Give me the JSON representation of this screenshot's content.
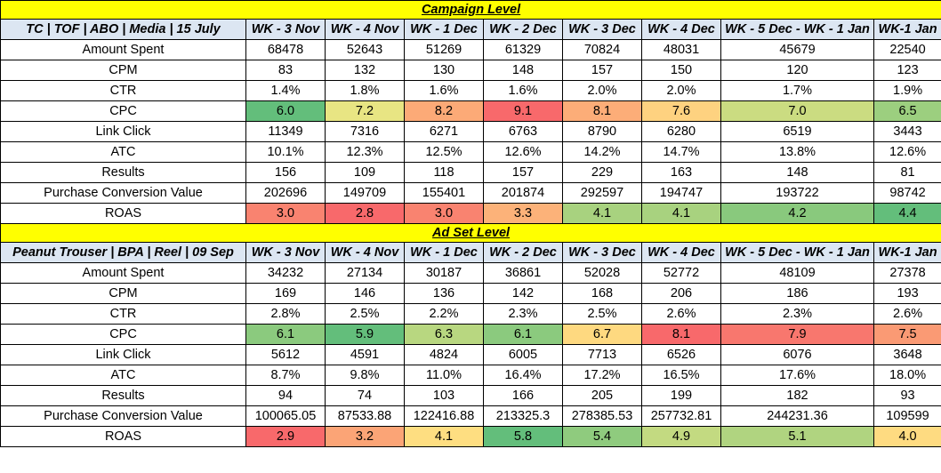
{
  "tables": [
    {
      "section_title": "Campaign Level",
      "name": "TC | TOF | ABO | Media | 15 July",
      "columns": [
        "WK - 3 Nov",
        "WK - 4 Nov",
        "WK - 1 Dec",
        "WK - 2 Dec",
        "WK - 3 Dec",
        "WK - 4 Dec",
        "WK - 5 Dec - WK - 1 Jan",
        "WK-1 Jan"
      ],
      "rows": [
        {
          "metric": "Amount Spent",
          "values": [
            "68478",
            "52643",
            "51269",
            "61329",
            "70824",
            "48031",
            "45679",
            "22540"
          ]
        },
        {
          "metric": "CPM",
          "values": [
            "83",
            "132",
            "130",
            "148",
            "157",
            "150",
            "120",
            "123"
          ]
        },
        {
          "metric": "CTR",
          "values": [
            "1.4%",
            "1.8%",
            "1.6%",
            "1.6%",
            "2.0%",
            "2.0%",
            "1.7%",
            "1.9%"
          ]
        },
        {
          "metric": "CPC",
          "values": [
            "6.0",
            "7.2",
            "8.2",
            "9.1",
            "8.1",
            "7.6",
            "7.0",
            "6.5"
          ],
          "colors": [
            "#63be7b",
            "#e8e583",
            "#fcaa77",
            "#f8696b",
            "#fcad78",
            "#fed280",
            "#cbdc81",
            "#9ccf7f"
          ]
        },
        {
          "metric": "Link Click",
          "values": [
            "11349",
            "7316",
            "6271",
            "6763",
            "8790",
            "6280",
            "6519",
            "3443"
          ]
        },
        {
          "metric": "ATC",
          "values": [
            "10.1%",
            "12.3%",
            "12.5%",
            "12.6%",
            "14.2%",
            "14.7%",
            "13.8%",
            "12.6%"
          ]
        },
        {
          "metric": "Results",
          "values": [
            "156",
            "109",
            "118",
            "157",
            "229",
            "163",
            "148",
            "81"
          ]
        },
        {
          "metric": "Purchase Conversion Value",
          "values": [
            "202696",
            "149709",
            "155401",
            "201874",
            "292597",
            "194747",
            "193722",
            "98742"
          ]
        },
        {
          "metric": "ROAS",
          "values": [
            "3.0",
            "2.8",
            "3.0",
            "3.3",
            "4.1",
            "4.1",
            "4.2",
            "4.4"
          ],
          "colors": [
            "#f98370",
            "#f8696b",
            "#f98370",
            "#fcb279",
            "#a8d27f",
            "#a8d27f",
            "#89c97d",
            "#63be7b"
          ]
        }
      ]
    },
    {
      "section_title": "Ad Set Level",
      "name": "Peanut Trouser | BPA | Reel | 09 Sep",
      "columns": [
        "WK - 3 Nov",
        "WK - 4 Nov",
        "WK - 1 Dec",
        "WK - 2 Dec",
        "WK - 3 Dec",
        "WK - 4 Dec",
        "WK - 5 Dec - WK - 1 Jan",
        "WK-1 Jan"
      ],
      "rows": [
        {
          "metric": "Amount Spent",
          "values": [
            "34232",
            "27134",
            "30187",
            "36861",
            "52028",
            "52772",
            "48109",
            "27378"
          ]
        },
        {
          "metric": "CPM",
          "values": [
            "169",
            "146",
            "136",
            "142",
            "168",
            "206",
            "186",
            "193"
          ]
        },
        {
          "metric": "CTR",
          "values": [
            "2.8%",
            "2.5%",
            "2.2%",
            "2.3%",
            "2.5%",
            "2.6%",
            "2.3%",
            "2.6%"
          ]
        },
        {
          "metric": "CPC",
          "values": [
            "6.1",
            "5.9",
            "6.3",
            "6.1",
            "6.7",
            "8.1",
            "7.9",
            "7.5"
          ],
          "colors": [
            "#8bca7e",
            "#63be7b",
            "#b8d780",
            "#8bca7e",
            "#fed980",
            "#f8696b",
            "#f8776e",
            "#fa9a74"
          ]
        },
        {
          "metric": "Link Click",
          "values": [
            "5612",
            "4591",
            "4824",
            "6005",
            "7713",
            "6526",
            "6076",
            "3648"
          ]
        },
        {
          "metric": "ATC",
          "values": [
            "8.7%",
            "9.8%",
            "11.0%",
            "16.4%",
            "17.2%",
            "16.5%",
            "17.6%",
            "18.0%"
          ]
        },
        {
          "metric": "Results",
          "values": [
            "94",
            "74",
            "103",
            "166",
            "205",
            "199",
            "182",
            "93"
          ]
        },
        {
          "metric": "Purchase Conversion Value",
          "values": [
            "100065.05",
            "87533.88",
            "122416.88",
            "213325.3",
            "278385.53",
            "257732.81",
            "244231.36",
            "109599"
          ]
        },
        {
          "metric": "ROAS",
          "values": [
            "2.9",
            "3.2",
            "4.1",
            "5.8",
            "5.4",
            "4.9",
            "5.1",
            "4.0"
          ],
          "colors": [
            "#f8696b",
            "#fba476",
            "#fede81",
            "#63be7b",
            "#8fcb7e",
            "#c3da81",
            "#b0d480",
            "#fedb81"
          ]
        }
      ]
    }
  ]
}
